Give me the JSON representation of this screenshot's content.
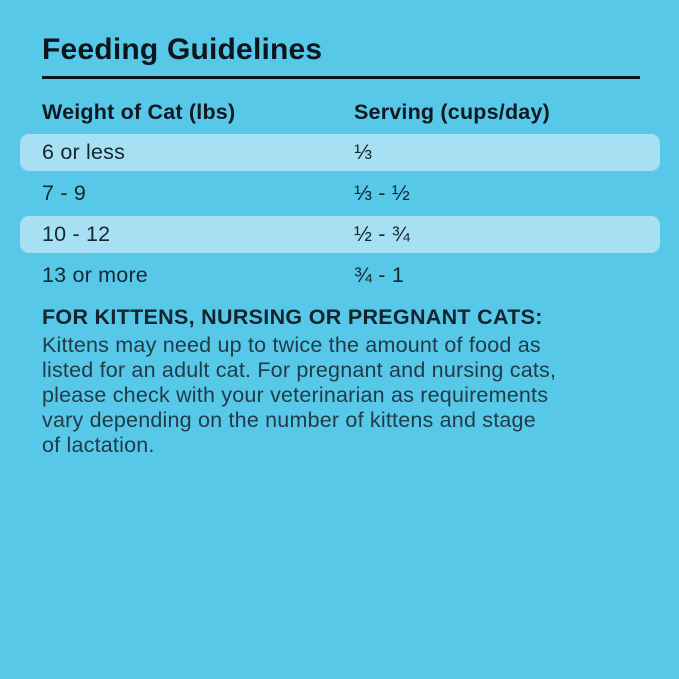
{
  "page": {
    "background_color": "#58C8E9",
    "row_highlight_color": "#A7E0F2",
    "title": "Feeding Guidelines"
  },
  "table": {
    "columns": [
      {
        "label": "Weight of Cat (lbs)"
      },
      {
        "label": "Serving (cups/day)"
      }
    ],
    "rows": [
      {
        "weight": "6 or less",
        "serving": "⅓",
        "highlighted": true
      },
      {
        "weight": "7 - 9",
        "serving": "⅓ - ½",
        "highlighted": false
      },
      {
        "weight": "10 - 12",
        "serving": "½ - ¾",
        "highlighted": true
      },
      {
        "weight": "13 or more",
        "serving": "¾ - 1",
        "highlighted": false
      }
    ]
  },
  "note": {
    "heading": "FOR KITTENS, NURSING OR PREGNANT CATS:",
    "body": "Kittens may need up to twice the amount of food as\nlisted for an adult cat. For pregnant and nursing cats,\nplease check with your veterinarian as requirements\nvary depending on the number of kittens and stage\nof lactation."
  }
}
